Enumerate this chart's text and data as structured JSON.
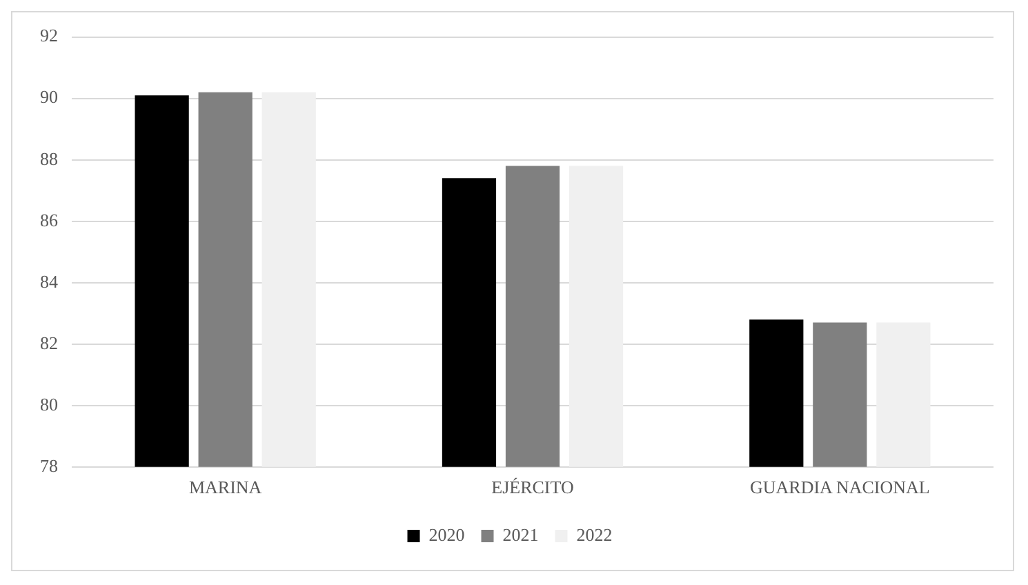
{
  "chart_data": {
    "type": "bar",
    "categories": [
      "MARINA",
      "EJÉRCITO",
      "GUARDIA NACIONAL"
    ],
    "series": [
      {
        "name": "2020",
        "color": "#000000",
        "values": [
          90.1,
          87.4,
          82.8
        ]
      },
      {
        "name": "2021",
        "color": "#808080",
        "values": [
          90.2,
          87.8,
          82.7
        ]
      },
      {
        "name": "2022",
        "color": "#f0f0f0",
        "values": [
          90.2,
          87.8,
          82.7
        ]
      }
    ],
    "ylim": [
      78,
      92
    ],
    "yticks": [
      78,
      80,
      82,
      84,
      86,
      88,
      90,
      92
    ],
    "grid": "y",
    "legend": "bottom"
  }
}
